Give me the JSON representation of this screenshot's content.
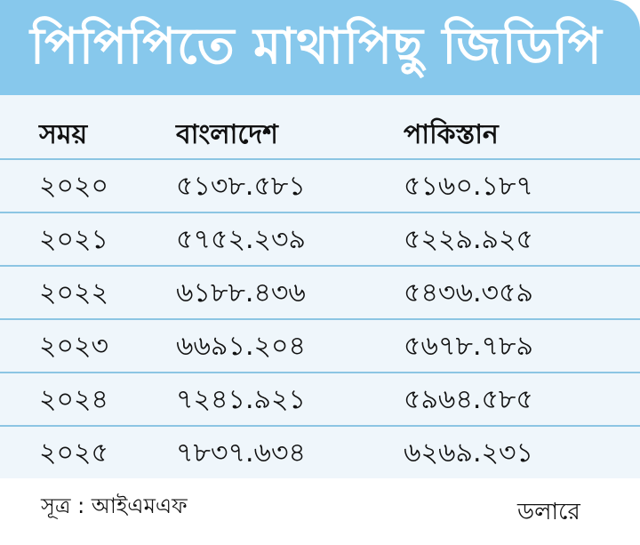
{
  "title": "পিপিপিতে মাথাপিছু জিডিপি",
  "chart_data": {
    "type": "table",
    "columns": [
      "সময়",
      "বাংলাদেশ",
      "পাকিস্তান"
    ],
    "rows": [
      [
        "২০২০",
        "৫১৩৮.৫৮১",
        "৫১৬০.১৮৭"
      ],
      [
        "২০২১",
        "৫৭৫২.২৩৯",
        "৫২২৯.৯২৫"
      ],
      [
        "২০২২",
        "৬১৮৮.৪৩৬",
        "৫৪৩৬.৩৫৯"
      ],
      [
        "২০২৩",
        "৬৬৯১.২০৪",
        "৫৬৭৮.৭৮৯"
      ],
      [
        "২০২৪",
        "৭২৪১.৯২১",
        "৫৯৬৪.৫৮৫"
      ],
      [
        "২০২৫",
        "৭৮৩৭.৬৩৪",
        "৬২৬৯.২৩১"
      ]
    ]
  },
  "footer": {
    "source": "সূত্র : আইএমএফ",
    "unit": "ডলারে"
  },
  "colors": {
    "header_bg": "#87c8ec",
    "table_bg": "#eff6fb",
    "rule": "#8cc5e3"
  }
}
